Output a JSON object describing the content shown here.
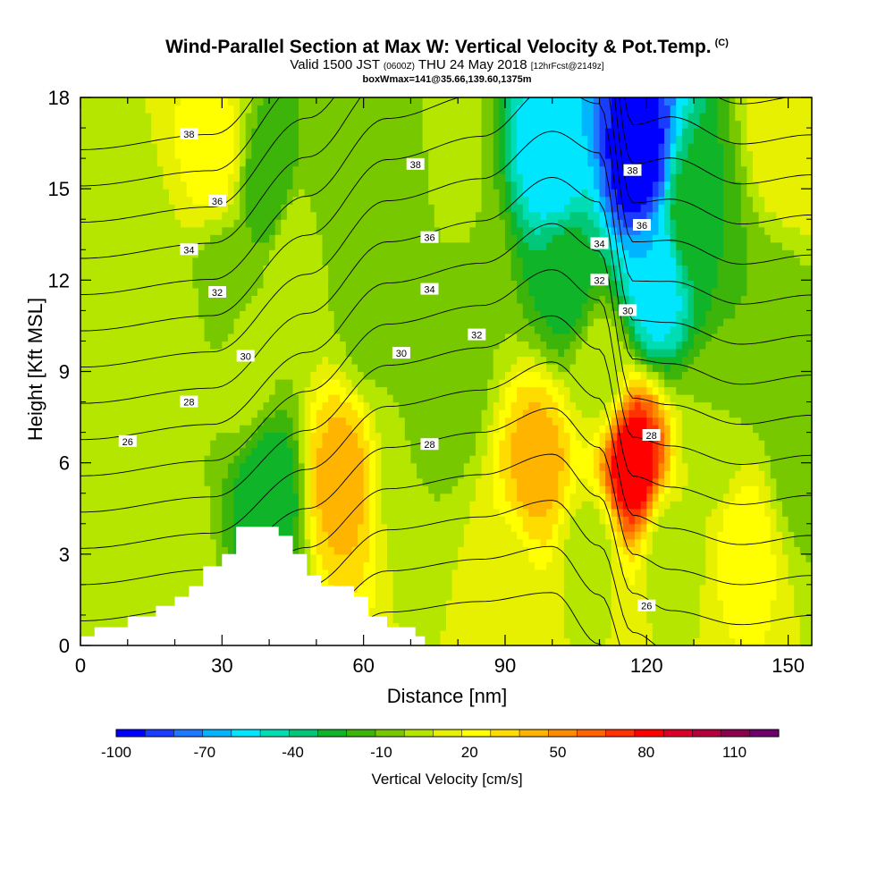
{
  "title": {
    "main": "Wind-Parallel Section at Max W: Vertical Velocity & Pot.Temp.",
    "main_mark": "(C)",
    "valid_prefix": "Valid 1500 JST",
    "valid_z": "(0600Z)",
    "valid_date": "THU 24 May 2018",
    "valid_fcst": "[12hrFcst@2149z]",
    "box": "boxWmax=141@35.66,139.60,1375m"
  },
  "chart_data": {
    "type": "heatmap",
    "xlabel": "Distance [nm]",
    "ylabel": "Height [Kft MSL]",
    "xlim": [
      0,
      155
    ],
    "ylim": [
      0,
      18
    ],
    "xticks": [
      0,
      30,
      60,
      90,
      120,
      150
    ],
    "yticks": [
      0,
      3,
      6,
      9,
      12,
      15,
      18
    ],
    "colorbar": {
      "label": "Vertical Velocity [cm/s]",
      "min": -100,
      "max": 125,
      "step": 10,
      "tick_values": [
        -100,
        -70,
        -40,
        -10,
        20,
        50,
        80,
        110
      ],
      "colors": [
        "#0000ff",
        "#1a3cff",
        "#1e78ff",
        "#00b4ff",
        "#00e6ff",
        "#00dcb4",
        "#00c878",
        "#10b428",
        "#3cb40a",
        "#78c800",
        "#b4e600",
        "#e6f000",
        "#ffff00",
        "#ffdc00",
        "#ffb400",
        "#ff8c00",
        "#ff6400",
        "#ff3200",
        "#ff0000",
        "#dc0028",
        "#b4003c",
        "#8c0050",
        "#6e006e"
      ]
    },
    "w_cells": [
      {
        "x": 0,
        "y": 9,
        "w": 5
      },
      {
        "x": 10,
        "y": 12,
        "w": 0
      },
      {
        "x": 20,
        "y": 10,
        "w": 5
      },
      {
        "x": 20,
        "y": 3,
        "w": 5
      },
      {
        "x": 28,
        "y": 16,
        "w": 25
      },
      {
        "x": 30,
        "y": 12,
        "w": -5
      },
      {
        "x": 35,
        "y": 9,
        "w": 5
      },
      {
        "x": 40,
        "y": 15,
        "w": -20
      },
      {
        "x": 40,
        "y": 5,
        "w": -30
      },
      {
        "x": 45,
        "y": 13,
        "w": 10
      },
      {
        "x": 55,
        "y": 5.5,
        "w": 45
      },
      {
        "x": 55,
        "y": 15,
        "w": -10
      },
      {
        "x": 62,
        "y": 11,
        "w": -5
      },
      {
        "x": 68,
        "y": 15,
        "w": -10
      },
      {
        "x": 70,
        "y": 6,
        "w": 0
      },
      {
        "x": 78,
        "y": 9,
        "w": -10
      },
      {
        "x": 78,
        "y": 16,
        "w": 5
      },
      {
        "x": 83,
        "y": 12,
        "w": 0
      },
      {
        "x": 90,
        "y": 2,
        "w": 15
      },
      {
        "x": 97,
        "y": 6,
        "w": 45
      },
      {
        "x": 100,
        "y": 16,
        "w": -60
      },
      {
        "x": 103,
        "y": 12,
        "w": -25
      },
      {
        "x": 108,
        "y": 3,
        "w": 5
      },
      {
        "x": 110,
        "y": 9,
        "w": 5
      },
      {
        "x": 117,
        "y": 6,
        "w": 90
      },
      {
        "x": 118,
        "y": 16,
        "w": -100
      },
      {
        "x": 122,
        "y": 12,
        "w": -60
      },
      {
        "x": 125,
        "y": 3,
        "w": 5
      },
      {
        "x": 130,
        "y": 14,
        "w": -20
      },
      {
        "x": 135,
        "y": 7,
        "w": 0
      },
      {
        "x": 141,
        "y": 3.5,
        "w": 25
      },
      {
        "x": 145,
        "y": 10,
        "w": -10
      },
      {
        "x": 150,
        "y": 17,
        "w": 20
      },
      {
        "x": 152,
        "y": 6,
        "w": -5
      }
    ],
    "terrain": [
      [
        0,
        0.3
      ],
      [
        3,
        0.3
      ],
      [
        3,
        0.6
      ],
      [
        10,
        0.6
      ],
      [
        10,
        0.95
      ],
      [
        16,
        0.95
      ],
      [
        16,
        1.3
      ],
      [
        20,
        1.3
      ],
      [
        20,
        1.6
      ],
      [
        23,
        1.6
      ],
      [
        23,
        1.95
      ],
      [
        26,
        1.95
      ],
      [
        26,
        2.6
      ],
      [
        30,
        2.6
      ],
      [
        30,
        3.0
      ],
      [
        33,
        3.0
      ],
      [
        33,
        3.9
      ],
      [
        42,
        3.9
      ],
      [
        42,
        3.6
      ],
      [
        45,
        3.6
      ],
      [
        45,
        3.0
      ],
      [
        48,
        3.0
      ],
      [
        48,
        2.3
      ],
      [
        51,
        2.3
      ],
      [
        51,
        1.95
      ],
      [
        58,
        1.95
      ],
      [
        58,
        1.6
      ],
      [
        61,
        1.6
      ],
      [
        61,
        0.95
      ],
      [
        65,
        0.95
      ],
      [
        65,
        0.6
      ],
      [
        71,
        0.6
      ],
      [
        71,
        0.3
      ],
      [
        73,
        0.3
      ],
      [
        73,
        0
      ]
    ],
    "theta_levels": [
      22,
      23,
      24,
      25,
      26,
      27,
      28,
      29,
      30,
      31,
      32,
      33,
      34,
      35,
      36,
      37,
      38
    ],
    "theta_anchor_x": [
      0,
      28,
      48,
      65,
      85,
      100,
      110,
      117,
      125,
      140,
      155
    ],
    "theta_base": [
      2.0,
      2.5,
      4.5,
      6.5,
      7.0,
      7.8,
      6.5,
      3.0,
      2.5,
      2.0,
      2.3
    ],
    "theta_slope": [
      0.84,
      0.84,
      0.78,
      0.74,
      0.72,
      0.66,
      0.62,
      0.78,
      0.74,
      0.76,
      0.76
    ],
    "contour_labels": [
      {
        "text": "38",
        "x": 23,
        "y": 16.8
      },
      {
        "text": "38",
        "x": 71,
        "y": 15.8
      },
      {
        "text": "38",
        "x": 117,
        "y": 15.6
      },
      {
        "text": "36",
        "x": 29,
        "y": 14.6
      },
      {
        "text": "36",
        "x": 74,
        "y": 13.4
      },
      {
        "text": "36",
        "x": 119,
        "y": 13.8
      },
      {
        "text": "34",
        "x": 23,
        "y": 13.0
      },
      {
        "text": "34",
        "x": 110,
        "y": 13.2
      },
      {
        "text": "34",
        "x": 74,
        "y": 11.7
      },
      {
        "text": "32",
        "x": 29,
        "y": 11.6
      },
      {
        "text": "32",
        "x": 110,
        "y": 12.0
      },
      {
        "text": "32",
        "x": 84,
        "y": 10.2
      },
      {
        "text": "30",
        "x": 35,
        "y": 9.5
      },
      {
        "text": "30",
        "x": 68,
        "y": 9.6
      },
      {
        "text": "30",
        "x": 116,
        "y": 11.0
      },
      {
        "text": "28",
        "x": 23,
        "y": 8.0
      },
      {
        "text": "28",
        "x": 74,
        "y": 6.6
      },
      {
        "text": "28",
        "x": 121,
        "y": 6.9
      },
      {
        "text": "26",
        "x": 10,
        "y": 6.7
      },
      {
        "text": "26",
        "x": 120,
        "y": 1.3
      }
    ]
  }
}
